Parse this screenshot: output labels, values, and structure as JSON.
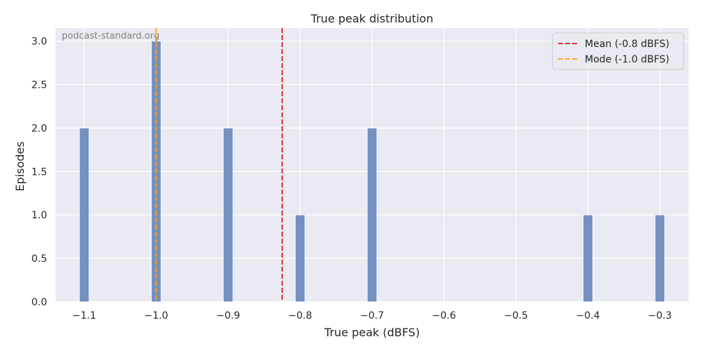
{
  "chart_data": {
    "type": "bar",
    "title": "True peak distribution",
    "xlabel": "True peak (dBFS)",
    "ylabel": "Episodes",
    "watermark": "podcast-standard.org",
    "xlim": [
      -1.14,
      -0.26
    ],
    "ylim": [
      0,
      3.15
    ],
    "bin_width": 0.0133,
    "xticks": [
      -1.1,
      -1.0,
      -0.9,
      -0.8,
      -0.7,
      -0.6,
      -0.5,
      -0.4,
      -0.3
    ],
    "xtick_labels": [
      "−1.1",
      "−1.0",
      "−0.9",
      "−0.8",
      "−0.7",
      "−0.6",
      "−0.5",
      "−0.4",
      "−0.3"
    ],
    "yticks": [
      0,
      0.5,
      1.0,
      1.5,
      2.0,
      2.5,
      3.0
    ],
    "ytick_labels": [
      "0.0",
      "0.5",
      "1.0",
      "1.5",
      "2.0",
      "2.5",
      "3.0"
    ],
    "bins": [
      {
        "x": -1.1,
        "count": 2
      },
      {
        "x": -1.0,
        "count": 3
      },
      {
        "x": -0.9,
        "count": 2
      },
      {
        "x": -0.8,
        "count": 1
      },
      {
        "x": -0.7,
        "count": 2
      },
      {
        "x": -0.4,
        "count": 1
      },
      {
        "x": -0.3,
        "count": 1
      }
    ],
    "reference_lines": [
      {
        "label": "Mean (-0.8 dBFS)",
        "x": -0.825,
        "color": "#e31a1c"
      },
      {
        "label": "Mode (-1.0 dBFS)",
        "x": -1.0,
        "color": "#ff9f0f"
      }
    ],
    "bar_color": "#4c72b0",
    "background": "#eaeaf2",
    "grid": true,
    "legend_position": "top-right"
  }
}
